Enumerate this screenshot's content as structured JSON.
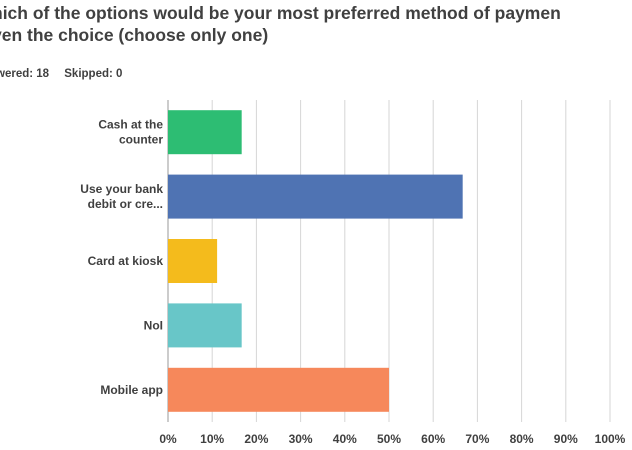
{
  "question": {
    "title_line1": "hich of the options would be your most preferred method of paymen",
    "title_line2": "ven the choice (choose only one)"
  },
  "summary": {
    "answered_label": "wered: 18",
    "skipped_label": "Skipped: 0"
  },
  "colors": {
    "grid": "#d6d6d6",
    "axis": "#9a9a9a"
  },
  "chart_data": {
    "type": "bar",
    "orientation": "horizontal",
    "categories": [
      [
        "Cash at the",
        "counter"
      ],
      [
        "Use your bank",
        "debit or cre..."
      ],
      [
        "Card at kiosk"
      ],
      [
        "NoI"
      ],
      [
        "Mobile app"
      ]
    ],
    "values": [
      16.67,
      66.67,
      11.11,
      16.67,
      50.0
    ],
    "bar_colors": [
      "#2dbd73",
      "#4f73b3",
      "#f4bb1c",
      "#68c6c8",
      "#f6885b"
    ],
    "xlim": [
      0,
      100
    ],
    "xticks": [
      "0%",
      "10%",
      "20%",
      "30%",
      "40%",
      "50%",
      "60%",
      "70%",
      "80%",
      "90%",
      "100%"
    ],
    "grid": true
  }
}
